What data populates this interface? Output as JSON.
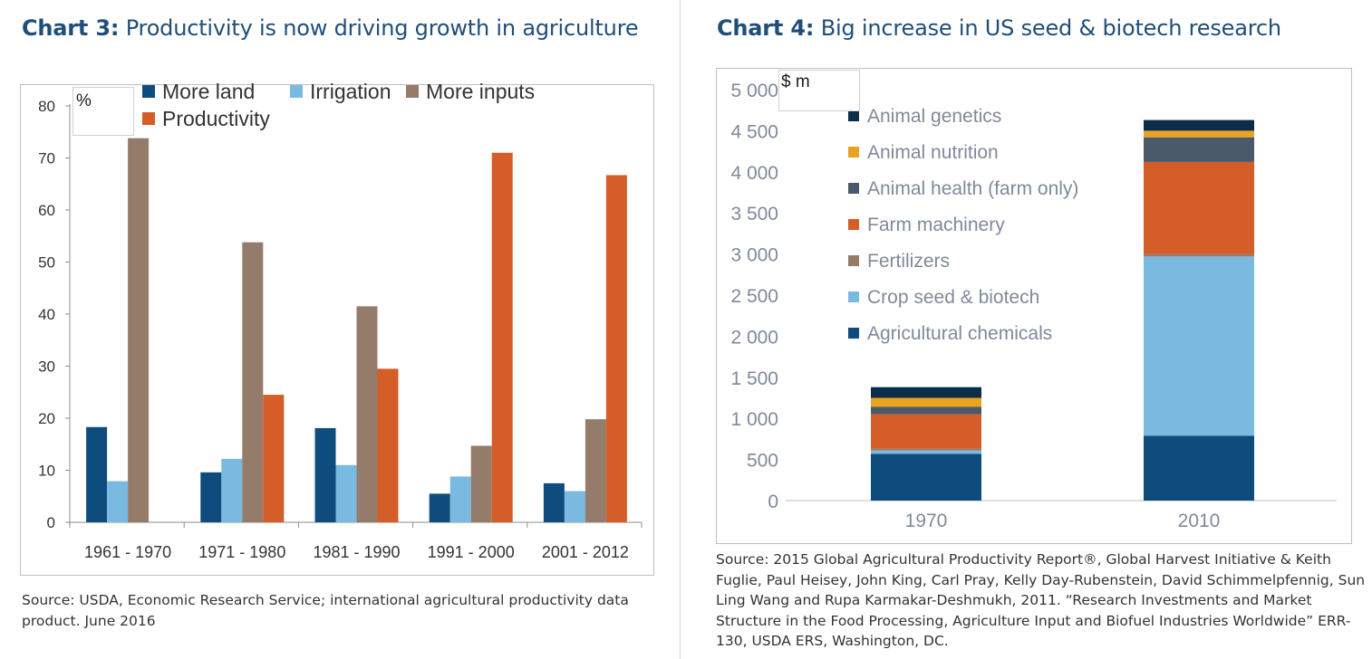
{
  "charts": [
    {
      "title_prefix": "Chart 3:",
      "title_text": "Productivity is now driving growth in agriculture",
      "unit_label": "%",
      "source": "Source: USDA, Economic Research Service; international agricultural productivity data product. June 2016"
    },
    {
      "title_prefix": "Chart 4:",
      "title_text": "Big increase in US seed & biotech research",
      "unit_label": "$ m",
      "source": "Source: 2015 Global Agricultural Productivity Report®, Global Harvest Initiative & Keith Fuglie, Paul Heisey, John King, Carl Pray, Kelly Day-Rubenstein, David Schimmelpfennig, Sun Ling Wang and Rupa Karmakar-Deshmukh, 2011. “Research Investments and Market Structure in the Food Processing, Agriculture Input and Biofuel Industries Worldwide” ERR-130, USDA ERS, Washington, DC."
    }
  ],
  "chart_data": [
    {
      "type": "bar",
      "title": "Productivity is now driving growth in agriculture",
      "ylabel": "%",
      "ylim": [
        0,
        80
      ],
      "yticks": [
        0,
        10,
        20,
        30,
        40,
        50,
        60,
        70,
        80
      ],
      "grid": false,
      "legend_position": "top",
      "categories": [
        "1961 - 1970",
        "1971 - 1980",
        "1981 - 1990",
        "1991 - 2000",
        "2001 - 2012"
      ],
      "series": [
        {
          "name": "More land",
          "color": "#0e4c7e",
          "values": [
            18.3,
            9.6,
            18.1,
            5.5,
            7.5
          ]
        },
        {
          "name": "Irrigation",
          "color": "#7ab9e0",
          "values": [
            7.9,
            12.2,
            11.0,
            8.8,
            6.0
          ]
        },
        {
          "name": "More inputs",
          "color": "#957b6a",
          "values": [
            73.8,
            53.8,
            41.5,
            14.7,
            19.8
          ]
        },
        {
          "name": "Productivity",
          "color": "#d45d28",
          "values": [
            0,
            24.5,
            29.5,
            71.0,
            66.7
          ]
        }
      ]
    },
    {
      "type": "bar",
      "stacked": true,
      "title": "Big increase in US seed & biotech research",
      "ylabel": "$ m",
      "ylim": [
        0,
        5000
      ],
      "yticks": [
        0,
        500,
        1000,
        1500,
        2000,
        2500,
        3000,
        3500,
        4000,
        4500,
        5000
      ],
      "ytick_labels": [
        "0",
        "500",
        "1 000",
        "1 500",
        "2 000",
        "2 500",
        "3 000",
        "3 500",
        "4 000",
        "4 500",
        "5 000"
      ],
      "grid": false,
      "legend_position": "left",
      "categories": [
        "1970",
        "2010"
      ],
      "series": [
        {
          "name": "Agricultural chemicals",
          "color": "#0e4c7e",
          "values": [
            570,
            790
          ]
        },
        {
          "name": "Crop seed & biotech",
          "color": "#7ab9e0",
          "values": [
            40,
            2180
          ]
        },
        {
          "name": "Fertilizers",
          "color": "#957b6a",
          "values": [
            20,
            30
          ]
        },
        {
          "name": "Farm machinery",
          "color": "#d45d28",
          "values": [
            420,
            1120
          ]
        },
        {
          "name": "Animal health (farm only)",
          "color": "#4a5a6a",
          "values": [
            90,
            300
          ]
        },
        {
          "name": "Animal nutrition",
          "color": "#e8a323",
          "values": [
            110,
            80
          ]
        },
        {
          "name": "Animal genetics",
          "color": "#0c2d4a",
          "values": [
            130,
            130
          ]
        }
      ],
      "legend_order": [
        "Animal genetics",
        "Animal nutrition",
        "Animal health (farm only)",
        "Farm machinery",
        "Fertilizers",
        "Crop seed & biotech",
        "Agricultural chemicals"
      ]
    }
  ]
}
